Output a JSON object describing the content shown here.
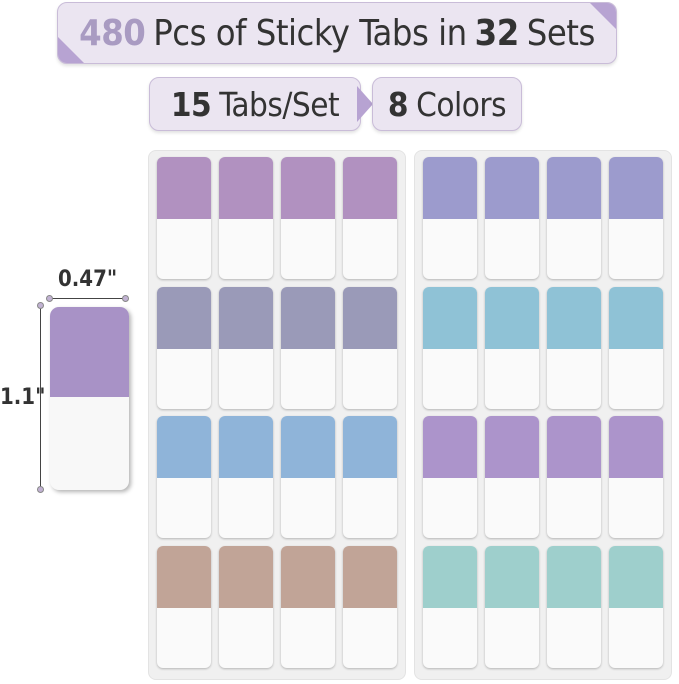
{
  "banner_main": {
    "count": "480",
    "text_a": "Pcs of Sticky Tabs in",
    "sets": "32",
    "text_b": "Sets"
  },
  "banner_tabs": {
    "count": "15",
    "text": "Tabs/Set"
  },
  "banner_colors": {
    "count": "8",
    "text": "Colors"
  },
  "dimensions": {
    "width": "0.47\"",
    "height": "1.1\""
  },
  "colors": {
    "single_tab": "#a892c6",
    "left_sheet": [
      "#b191c0",
      "#9a9ab8",
      "#8fb4d9",
      "#c1a497"
    ],
    "right_sheet": [
      "#9c9bcd",
      "#8fc2d6",
      "#ac94cb",
      "#9ecfcc"
    ]
  }
}
